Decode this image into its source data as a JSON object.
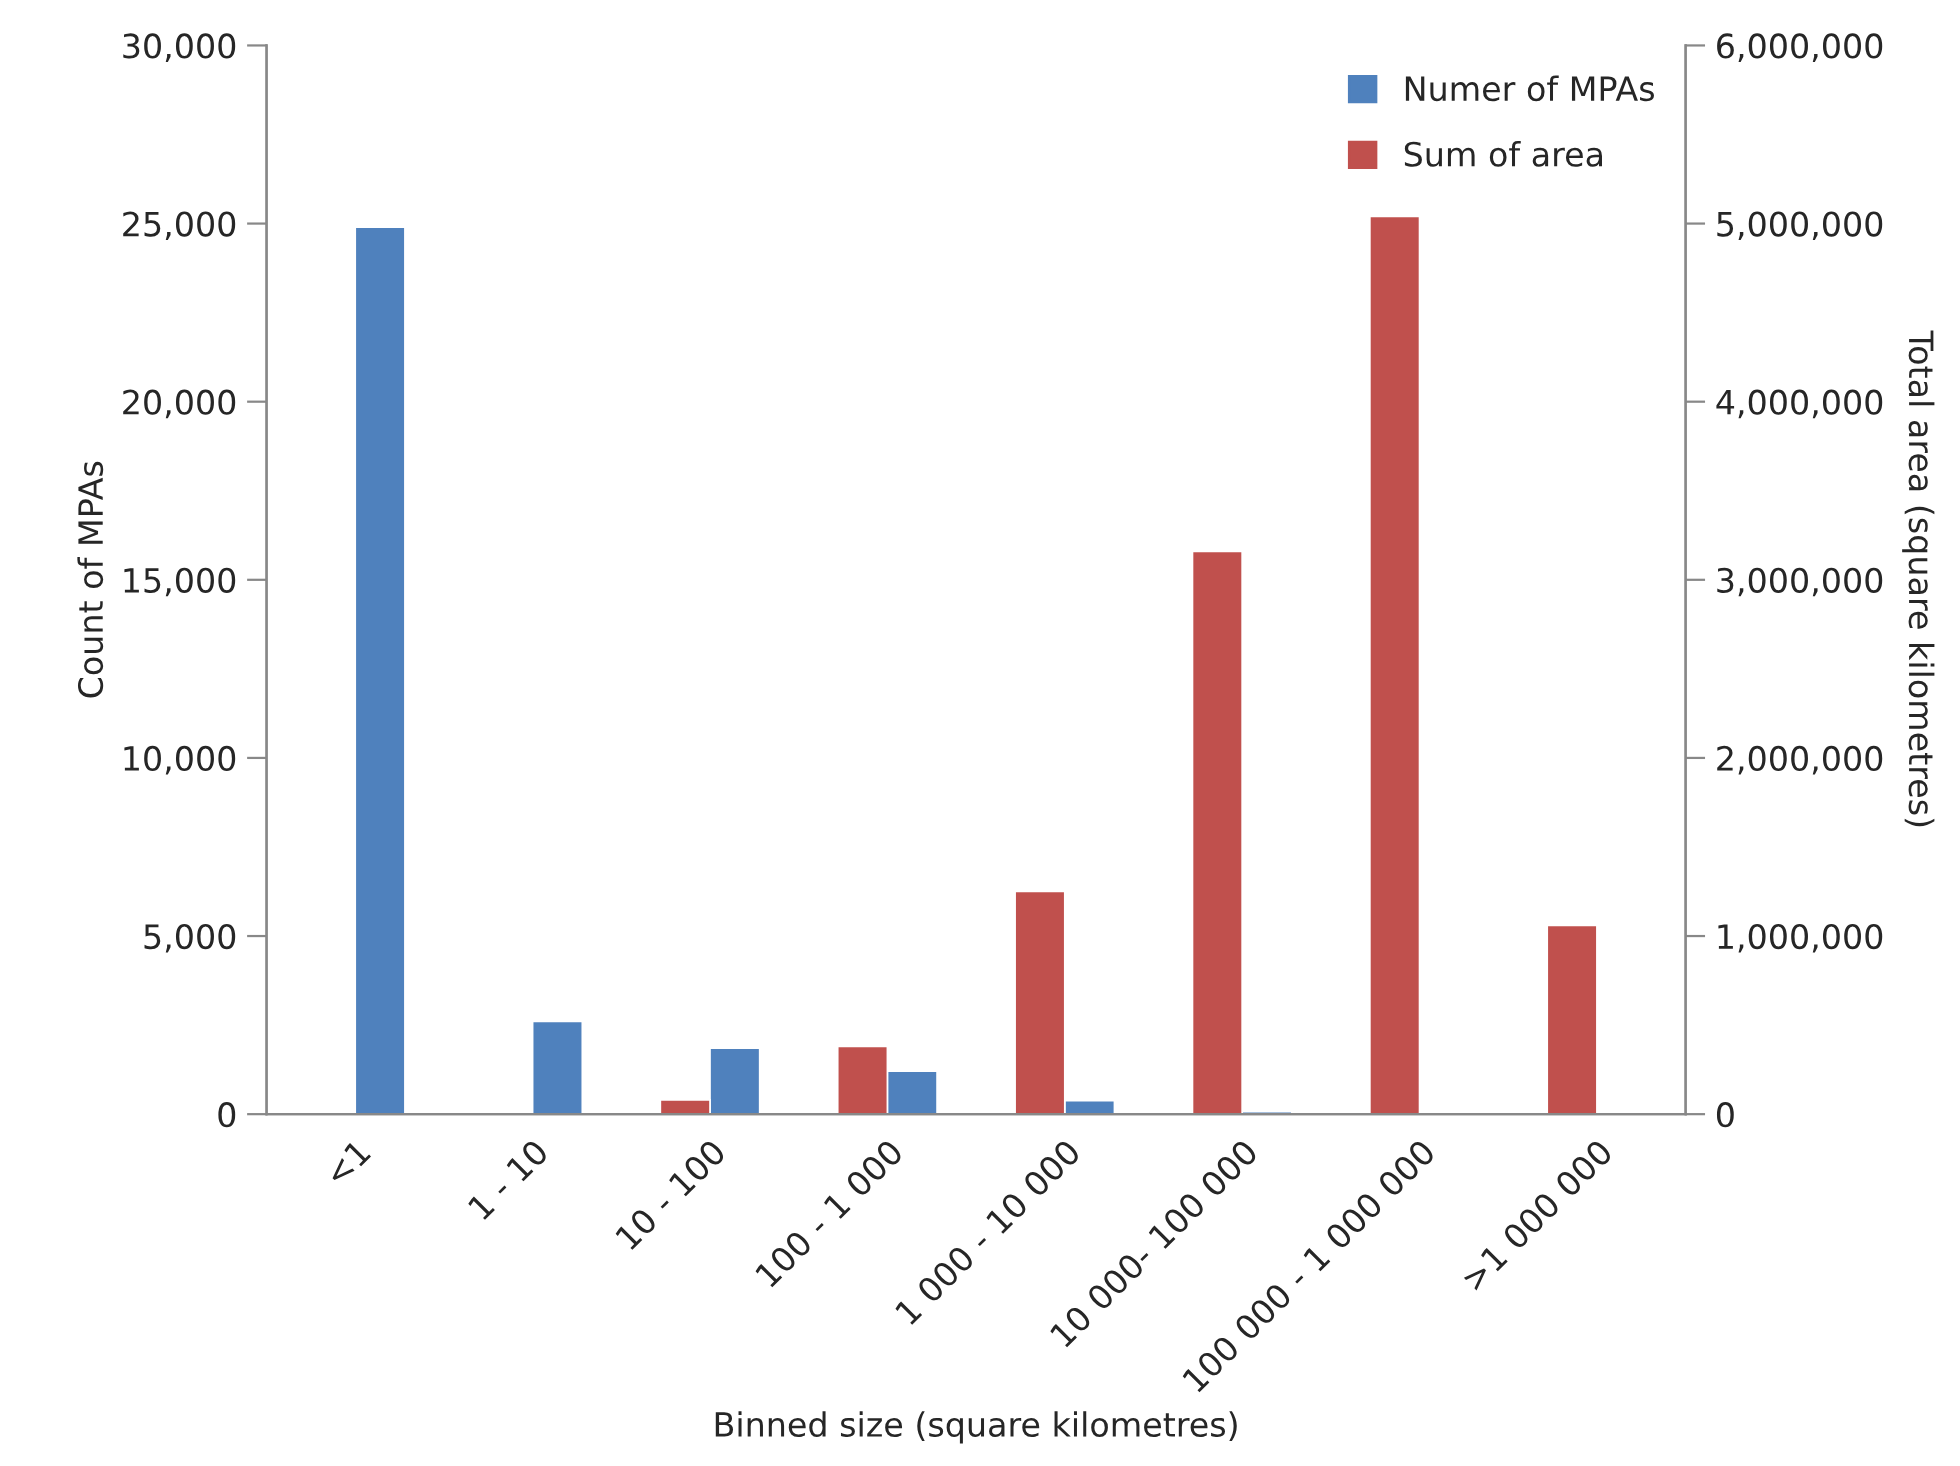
{
  "chart_data": {
    "type": "bar",
    "categories": [
      "<1",
      "1 - 10",
      "10 - 100",
      "100 - 1 000",
      "1 000 - 10 000",
      "10 000- 100 000",
      "100 000 - 1 000 000",
      ">1 000 000"
    ],
    "series": [
      {
        "name": "Numer of MPAs",
        "color": "#4f81bd",
        "values": [
          24900,
          2600,
          1850,
          1210,
          380,
          70,
          null,
          null
        ]
      },
      {
        "name": "Sum of area",
        "color": "#c0504d",
        "axis": "y2",
        "values": [
          null,
          null,
          80000,
          380000,
          1250000,
          3160000,
          5040000,
          1060000
        ]
      }
    ],
    "xlabel": "Binned size (square kilometres)",
    "ylabel": "Count of MPAs",
    "y2label": "Total area (square kilometres)",
    "ylim": [
      0,
      30000
    ],
    "yticks": [
      {
        "value": 0,
        "label": "0"
      },
      {
        "value": 5000,
        "label": "5,000"
      },
      {
        "value": 10000,
        "label": "10,000"
      },
      {
        "value": 15000,
        "label": "15,000"
      },
      {
        "value": 20000,
        "label": "20,000"
      },
      {
        "value": 25000,
        "label": "25,000"
      },
      {
        "value": 30000,
        "label": "30,000"
      }
    ],
    "y2lim": [
      0,
      6000000
    ],
    "y2ticks": [
      {
        "value": 0,
        "label": "0"
      },
      {
        "value": 1000000,
        "label": "1,000,000"
      },
      {
        "value": 2000000,
        "label": "2,000,000"
      },
      {
        "value": 3000000,
        "label": "3,000,000"
      },
      {
        "value": 4000000,
        "label": "4,000,000"
      },
      {
        "value": 5000000,
        "label": "5,000,000"
      },
      {
        "value": 6000000,
        "label": "6,000,000"
      }
    ],
    "grid": false,
    "legend": "top right"
  }
}
